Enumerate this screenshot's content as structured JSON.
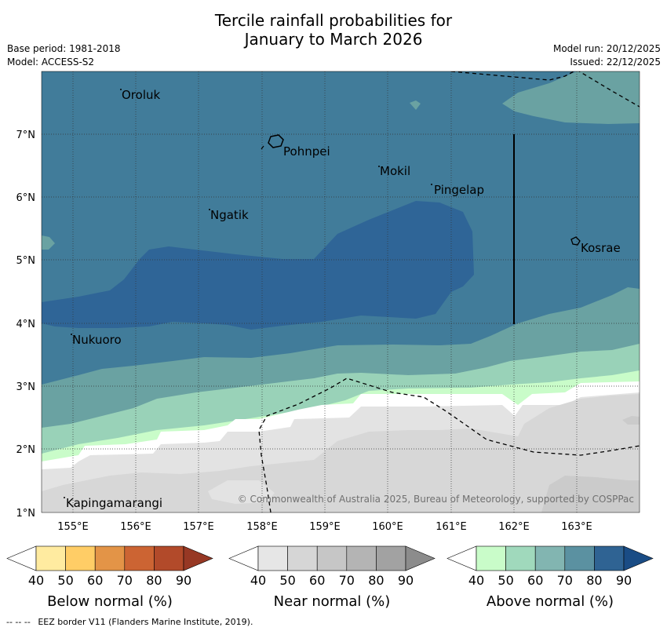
{
  "title": {
    "line1": "Tercile rainfall probabilities for",
    "line2": "January to March 2026"
  },
  "meta": {
    "base_period": "Base period: 1981-2018",
    "model": "Model: ACCESS-S2",
    "model_run": "Model run: 20/12/2025",
    "issued": "Issued: 22/12/2025"
  },
  "map": {
    "x_axis": {
      "ticks": [
        "155°E",
        "156°E",
        "157°E",
        "158°E",
        "159°E",
        "160°E",
        "161°E",
        "162°E",
        "163°E"
      ]
    },
    "y_axis": {
      "ticks": [
        "7°N",
        "6°N",
        "5°N",
        "4°N",
        "3°N",
        "2°N",
        "1°N"
      ]
    },
    "places": [
      {
        "id": "oroluk",
        "name": "Oroluk"
      },
      {
        "id": "pohnpei",
        "name": "Pohnpei"
      },
      {
        "id": "mokil",
        "name": "Mokil"
      },
      {
        "id": "pingelap",
        "name": "Pingelap"
      },
      {
        "id": "ngatik",
        "name": "Ngatik"
      },
      {
        "id": "kosrae",
        "name": "Kosrae"
      },
      {
        "id": "nukuoro",
        "name": "Nukuoro"
      },
      {
        "id": "kapingamarangi",
        "name": "Kapingamarangi"
      }
    ],
    "copyright": "© Commonwealth of Australia 2025, Bureau of Meteorology, supported by COSPPac"
  },
  "legends": [
    {
      "id": "below",
      "label": "Below normal (%)",
      "ticks": [
        "40",
        "50",
        "60",
        "70",
        "80",
        "90"
      ],
      "colors": [
        "#ffffff",
        "#ffeba0",
        "#ffcd66",
        "#e39447",
        "#cc6433",
        "#b24a2a",
        "#973824"
      ]
    },
    {
      "id": "near",
      "label": "Near normal (%)",
      "ticks": [
        "40",
        "50",
        "60",
        "70",
        "80",
        "90"
      ],
      "colors": [
        "#ffffff",
        "#e6e6e6",
        "#d6d6d6",
        "#c6c6c6",
        "#b4b4b4",
        "#a2a2a2",
        "#8c8c8c"
      ]
    },
    {
      "id": "above",
      "label": "Above normal (%)",
      "ticks": [
        "40",
        "50",
        "60",
        "70",
        "80",
        "90"
      ],
      "colors": [
        "#ffffff",
        "#c9fcc9",
        "#a0d9bc",
        "#82b5b1",
        "#5b91a1",
        "#2f6393",
        "#1a4c85"
      ]
    }
  ],
  "footnote": {
    "dashes": "-- -- --",
    "text": "EEZ border V11 (Flanders Marine Institute, 2019)."
  },
  "colors": {
    "above_50": "#99d2b8",
    "above_60": "#6aa2a2",
    "above_70": "#417c9a",
    "above_80": "#2f6597",
    "above_40": "#c9fcc9",
    "near_40": "#e3e3e3",
    "near_50": "#d7d7d7"
  }
}
